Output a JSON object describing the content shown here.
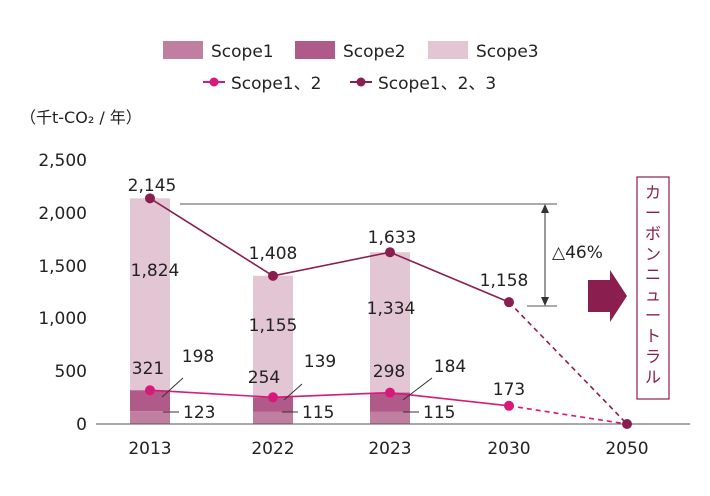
{
  "chart_data": {
    "type": "bar+line",
    "unit_label": "（千t-CO₂ / 年）",
    "categories": [
      "2013",
      "2022",
      "2023",
      "2030",
      "2050"
    ],
    "y_ticks": [
      "2,500",
      "2,000",
      "1,500",
      "1,000",
      "500",
      "0"
    ],
    "ylim": [
      0,
      2500
    ],
    "series": [
      {
        "name": "Scope1",
        "type": "bar",
        "color": "#c07fa0",
        "values": [
          123,
          115,
          115,
          null,
          null
        ],
        "labels": [
          "123",
          "115",
          "115",
          "",
          ""
        ]
      },
      {
        "name": "Scope2",
        "type": "bar",
        "color": "#b05a8a",
        "values": [
          198,
          139,
          184,
          null,
          null
        ],
        "labels": [
          "198",
          "139",
          "184",
          "",
          ""
        ]
      },
      {
        "name": "Scope3",
        "type": "bar",
        "color": "#e2c6d4",
        "values": [
          1824,
          1155,
          1334,
          null,
          null
        ],
        "labels": [
          "1,824",
          "1,155",
          "1,334",
          "",
          ""
        ]
      },
      {
        "name": "Scope1、2",
        "type": "line",
        "color": "#d6197a",
        "values": [
          321,
          254,
          298,
          173,
          0
        ],
        "labels": [
          "321",
          "254",
          "298",
          "173",
          ""
        ]
      },
      {
        "name": "Scope1、2、3",
        "type": "line",
        "color": "#8a1e4f",
        "values": [
          2145,
          1408,
          1633,
          1158,
          0
        ],
        "labels": [
          "2,145",
          "1,408",
          "1,633",
          "1,158",
          ""
        ]
      }
    ],
    "annotations": {
      "reduction": "△46%",
      "carbon_neutral": "カーボンニュートラル"
    },
    "grid": false,
    "legend_position": "top"
  }
}
